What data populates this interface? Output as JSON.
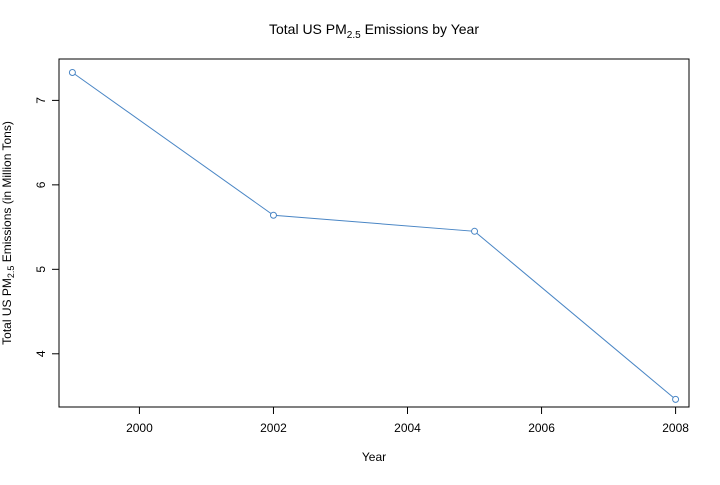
{
  "chart_data": {
    "type": "line",
    "title": {
      "prefix": "Total US  PM",
      "subscript": "2.5",
      "suffix": " Emissions by Year"
    },
    "xlabel": "Year",
    "ylabel": {
      "prefix": "Total US  PM",
      "subscript": "2.5",
      "suffix": " Emissions (in Million Tons)"
    },
    "xlim": [
      1998.8,
      2008.2
    ],
    "ylim": [
      3.37,
      7.49
    ],
    "x_ticks": [
      2000,
      2002,
      2004,
      2006,
      2008
    ],
    "y_ticks": [
      4,
      5,
      6,
      7
    ],
    "grid": false,
    "series": [
      {
        "x": [
          1999,
          2002,
          2005,
          2008
        ],
        "y": [
          7.33,
          5.64,
          5.45,
          3.46
        ],
        "color": "#4a86c5",
        "marker": "open-circle"
      }
    ]
  }
}
